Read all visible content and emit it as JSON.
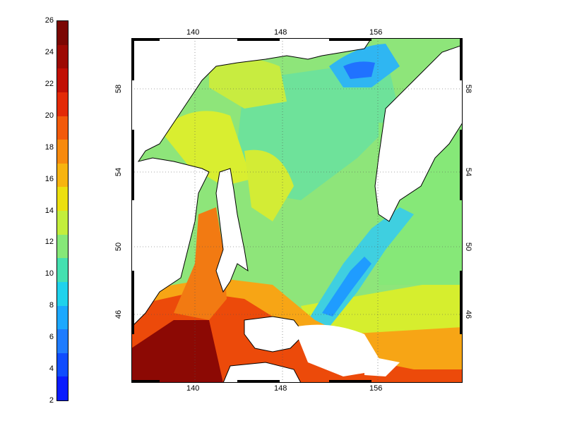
{
  "colorbar": {
    "ticks": [
      "2",
      "4",
      "6",
      "8",
      "10",
      "12",
      "14",
      "16",
      "18",
      "20",
      "22",
      "24",
      "26"
    ],
    "colors": [
      "#0a1cff",
      "#0f4cff",
      "#1f7cff",
      "#1ca8ff",
      "#20d2ec",
      "#45e0b0",
      "#86e878",
      "#c3ee3c",
      "#ecdf10",
      "#f7b40f",
      "#f78a0e",
      "#f25a0b",
      "#e32a07",
      "#c10f05",
      "#9d0a04",
      "#7b0703"
    ]
  },
  "map": {
    "lon_ticks": [
      "140",
      "148",
      "156"
    ],
    "lat_ticks": [
      "46",
      "50",
      "54",
      "58"
    ],
    "land_color": "#ffffff",
    "coast_color": "#000000"
  }
}
